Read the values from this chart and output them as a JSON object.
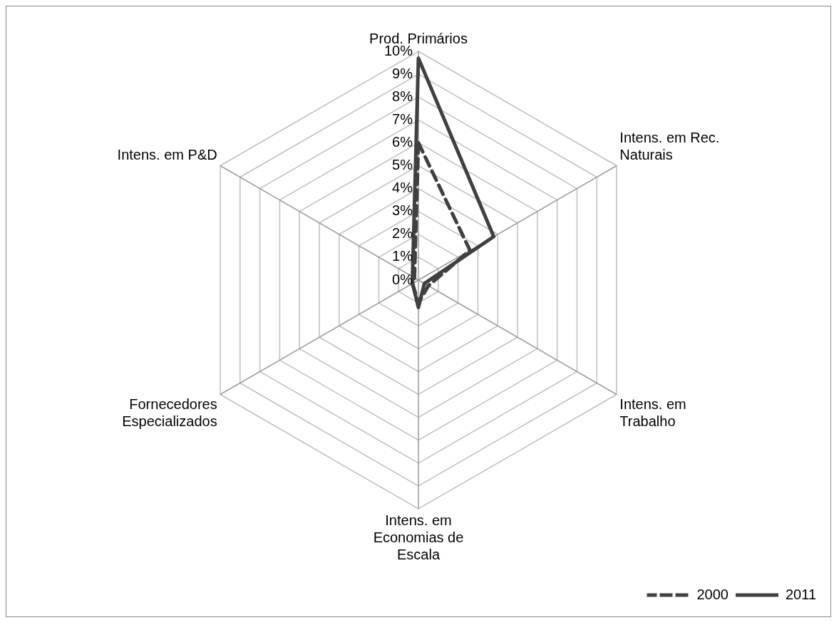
{
  "chart_data": {
    "type": "radar",
    "categories": [
      "Prod. Primários",
      "Intens. em Rec. Naturais",
      "Intens. em Trabalho",
      "Intens. em Economias de Escala",
      "Fornecedores Especializados",
      "Intens. em P&D"
    ],
    "series": [
      {
        "name": "2000",
        "color": "#404040",
        "line_style": "dashed",
        "values": [
          6.0,
          2.6,
          0.5,
          1.0,
          0.3,
          0.2
        ]
      },
      {
        "name": "2011",
        "color": "#404040",
        "line_style": "solid",
        "values": [
          9.7,
          3.8,
          0.3,
          1.2,
          0.3,
          0.3
        ]
      }
    ],
    "ylim": [
      0,
      10
    ],
    "yticks": [
      {
        "value": 0,
        "label": "0%"
      },
      {
        "value": 1,
        "label": "1%"
      },
      {
        "value": 2,
        "label": "2%"
      },
      {
        "value": 3,
        "label": "3%"
      },
      {
        "value": 4,
        "label": "4%"
      },
      {
        "value": 5,
        "label": "5%"
      },
      {
        "value": 6,
        "label": "6%"
      },
      {
        "value": 7,
        "label": "7%"
      },
      {
        "value": 8,
        "label": "8%"
      },
      {
        "value": 9,
        "label": "9%"
      },
      {
        "value": 10,
        "label": "10%"
      }
    ],
    "grid": true,
    "legend": "bottom right",
    "marker": "none"
  }
}
